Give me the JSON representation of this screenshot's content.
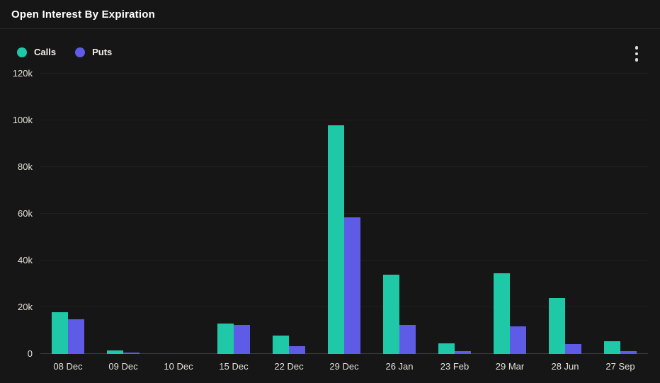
{
  "header": {
    "title": "Open Interest By Expiration",
    "menu_icon": "kebab-vertical-dots"
  },
  "legend": {
    "items": [
      {
        "label": "Calls",
        "color": "#1FC8A6"
      },
      {
        "label": "Puts",
        "color": "#5E5CE6"
      }
    ]
  },
  "chart_data": {
    "type": "bar",
    "title": "Open Interest By Expiration",
    "categories": [
      "08 Dec",
      "09 Dec",
      "10 Dec",
      "15 Dec",
      "22 Dec",
      "29 Dec",
      "26 Jan",
      "23 Feb",
      "29 Mar",
      "28 Jun",
      "27 Sep"
    ],
    "series": [
      {
        "name": "Calls",
        "color": "#1FC8A6",
        "values": [
          18000,
          1400,
          0,
          12900,
          8000,
          98000,
          33800,
          4700,
          34400,
          24000,
          5600
        ]
      },
      {
        "name": "Puts",
        "color": "#5E5CE6",
        "values": [
          14800,
          600,
          0,
          12400,
          3400,
          58600,
          12500,
          1100,
          11900,
          4300,
          1300
        ]
      }
    ],
    "xlabel": "",
    "ylabel": "",
    "ylim": [
      0,
      120000
    ],
    "yticks": [
      0,
      20000,
      40000,
      60000,
      80000,
      100000,
      120000
    ],
    "ytick_labels": [
      "0",
      "20k",
      "40k",
      "60k",
      "80k",
      "100k",
      "120k"
    ],
    "grid": "horizontal",
    "legend_position": "top-left",
    "background": "#161616"
  }
}
